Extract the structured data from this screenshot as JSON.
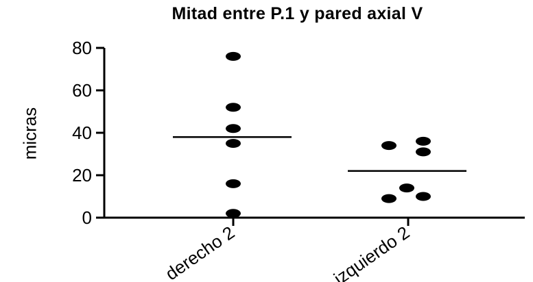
{
  "chart_data": {
    "type": "scatter",
    "title": "Mitad entre P.1 y pared axial V",
    "xlabel": "",
    "ylabel": "micras",
    "ylim": [
      0,
      80
    ],
    "yticks": [
      0,
      20,
      40,
      60,
      80
    ],
    "grid": false,
    "categories": [
      "derecho 2",
      "izquierdo 2"
    ],
    "series": [
      {
        "category": "derecho 2",
        "values": [
          76,
          52,
          42,
          35,
          16,
          2
        ],
        "mean": 38
      },
      {
        "category": "izquierdo 2",
        "values": [
          36,
          34,
          31,
          14,
          10,
          9
        ],
        "mean": 22
      }
    ],
    "marker_color": "#000000"
  }
}
